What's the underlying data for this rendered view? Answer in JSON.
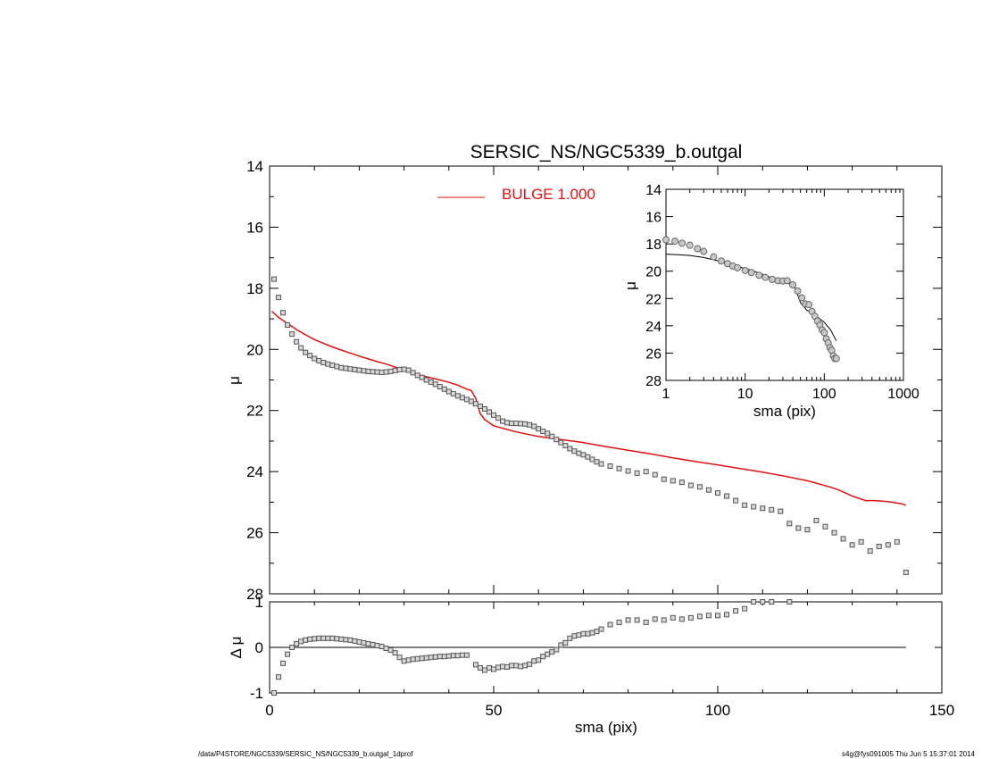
{
  "title": "SERSIC_NS/NGC5339_b.outgal",
  "footer": {
    "left": "/data/P4STORE/NGC5339/SERSIC_NS/NGC5339_b.outgal_1dprof",
    "right": "s4g@fys091005  Thu Jun  5 15:37:01 2014"
  },
  "colors": {
    "model": "#e01010",
    "data": "#555555",
    "axis": "#000000"
  },
  "chart_data": [
    {
      "id": "profile",
      "type": "scatter",
      "xlabel": "",
      "ylabel": "μ",
      "xlim": [
        0,
        150
      ],
      "ylim": [
        28,
        14
      ],
      "y_inverted": true,
      "x_ticks": [
        0,
        50,
        100,
        150
      ],
      "x_ticklabels_shown": false,
      "y_ticks": [
        14,
        16,
        18,
        20,
        22,
        24,
        26,
        28
      ],
      "y_ticklabels": [
        "14",
        "16",
        "18",
        "20",
        "22",
        "24",
        "26",
        "28"
      ],
      "legend": {
        "position": "top-center",
        "entries": [
          {
            "label": "BULGE  1.000",
            "color": "#e01010"
          }
        ]
      },
      "series": [
        {
          "kind": "points",
          "marker": "square",
          "x": [
            1,
            2,
            3,
            4,
            5,
            6,
            7,
            8,
            9,
            10,
            11,
            12,
            13,
            14,
            15,
            16,
            17,
            18,
            19,
            20,
            21,
            22,
            23,
            24,
            25,
            26,
            27,
            28,
            29,
            30,
            31,
            32,
            33,
            34,
            35,
            36,
            37,
            38,
            39,
            40,
            41,
            42,
            43,
            44,
            45,
            46,
            47,
            48,
            49,
            50,
            51,
            52,
            53,
            54,
            55,
            56,
            57,
            58,
            59,
            60,
            61,
            62,
            63,
            64,
            65,
            66,
            67,
            68,
            69,
            70,
            71,
            72,
            73,
            74,
            76,
            78,
            80,
            82,
            84,
            86,
            88,
            90,
            92,
            94,
            96,
            98,
            100,
            102,
            104,
            106,
            108,
            110,
            112,
            114,
            116,
            118,
            120,
            122,
            124,
            126,
            128,
            130,
            132,
            134,
            136,
            138,
            140,
            142
          ],
          "y": [
            17.7,
            18.3,
            18.8,
            19.2,
            19.5,
            19.75,
            19.95,
            20.1,
            20.2,
            20.3,
            20.37,
            20.43,
            20.48,
            20.52,
            20.56,
            20.6,
            20.62,
            20.64,
            20.66,
            20.68,
            20.7,
            20.72,
            20.73,
            20.74,
            20.75,
            20.74,
            20.72,
            20.69,
            20.66,
            20.65,
            20.68,
            20.76,
            20.85,
            20.92,
            21.0,
            21.07,
            21.14,
            21.22,
            21.3,
            21.38,
            21.45,
            21.52,
            21.58,
            21.64,
            21.7,
            21.78,
            21.86,
            21.95,
            22.05,
            22.15,
            22.25,
            22.35,
            22.4,
            22.42,
            22.42,
            22.43,
            22.44,
            22.47,
            22.52,
            22.6,
            22.68,
            22.75,
            22.85,
            22.95,
            23.05,
            23.15,
            23.25,
            23.33,
            23.4,
            23.45,
            23.52,
            23.6,
            23.68,
            23.75,
            23.82,
            23.9,
            23.98,
            24.05,
            24.0,
            24.1,
            24.25,
            24.3,
            24.35,
            24.45,
            24.5,
            24.6,
            24.7,
            24.8,
            24.95,
            25.1,
            25.15,
            25.2,
            25.25,
            25.3,
            25.7,
            25.85,
            25.9,
            25.6,
            25.8,
            26.0,
            26.2,
            26.4,
            26.3,
            26.6,
            26.45,
            26.4,
            26.3,
            27.3
          ]
        },
        {
          "kind": "line",
          "name": "BULGE  1.000",
          "color": "#e01010",
          "x": [
            0.5,
            2,
            4,
            6,
            8,
            10,
            12,
            14,
            16,
            18,
            20,
            22,
            24,
            26,
            28,
            30,
            32,
            34,
            36,
            38,
            40,
            42,
            43,
            44,
            45,
            46,
            47,
            48,
            50,
            55,
            60,
            65,
            70,
            75,
            80,
            85,
            90,
            95,
            100,
            105,
            110,
            115,
            120,
            125,
            127,
            130,
            133,
            135,
            138,
            141,
            142
          ],
          "y": [
            18.75,
            18.95,
            19.15,
            19.35,
            19.52,
            19.68,
            19.8,
            19.92,
            20.02,
            20.12,
            20.22,
            20.31,
            20.4,
            20.48,
            20.58,
            20.68,
            20.78,
            20.86,
            20.93,
            21.0,
            21.08,
            21.17,
            21.24,
            21.3,
            21.35,
            21.6,
            22.1,
            22.3,
            22.5,
            22.7,
            22.85,
            22.95,
            23.05,
            23.18,
            23.3,
            23.42,
            23.55,
            23.67,
            23.78,
            23.9,
            24.02,
            24.15,
            24.3,
            24.5,
            24.6,
            24.8,
            24.95,
            24.95,
            24.98,
            25.05,
            25.1
          ]
        }
      ]
    },
    {
      "id": "inset",
      "type": "line",
      "xlabel": "sma (pix)",
      "ylabel": "μ",
      "x_scale": "log",
      "xlim": [
        1,
        1000
      ],
      "ylim": [
        28,
        14
      ],
      "y_inverted": true,
      "x_ticks": [
        1,
        10,
        100,
        1000
      ],
      "x_ticklabels": [
        "1",
        "10",
        "100",
        "1000"
      ],
      "y_ticks": [
        14,
        16,
        18,
        20,
        22,
        24,
        26,
        28
      ],
      "y_ticklabels": [
        "14",
        "16",
        "18",
        "20",
        "22",
        "24",
        "26",
        "28"
      ],
      "series": [
        {
          "kind": "points",
          "marker": "circle",
          "x": [
            1,
            1.3,
            1.6,
            2,
            2.5,
            3,
            4,
            5,
            6,
            7,
            8,
            10,
            12,
            15,
            18,
            22,
            26,
            30,
            34,
            40,
            46,
            52,
            58,
            64,
            70,
            76,
            82,
            88,
            94,
            100,
            106,
            112,
            118,
            124,
            130,
            136,
            142
          ],
          "y": [
            17.7,
            17.8,
            17.95,
            18.1,
            18.35,
            18.55,
            18.95,
            19.25,
            19.45,
            19.62,
            19.75,
            19.95,
            20.1,
            20.3,
            20.45,
            20.6,
            20.7,
            20.72,
            20.7,
            21.0,
            21.45,
            21.95,
            22.4,
            22.45,
            22.95,
            23.3,
            23.65,
            23.95,
            24.3,
            24.5,
            24.95,
            25.25,
            25.6,
            25.8,
            26.2,
            26.4,
            26.4
          ]
        },
        {
          "kind": "line",
          "color": "#000000",
          "x": [
            1,
            1.5,
            2,
            3,
            5,
            8,
            12,
            20,
            30,
            40,
            44,
            46,
            50,
            60,
            70,
            80,
            100,
            120,
            142
          ],
          "y": [
            18.75,
            18.8,
            18.85,
            19.0,
            19.3,
            19.65,
            19.95,
            20.4,
            20.7,
            21.05,
            21.3,
            21.7,
            22.3,
            22.85,
            23.05,
            23.3,
            23.75,
            24.3,
            25.1
          ]
        }
      ]
    },
    {
      "id": "residual",
      "type": "scatter",
      "xlabel": "sma (pix)",
      "ylabel": "Δ μ",
      "xlim": [
        0,
        150
      ],
      "ylim": [
        -1,
        1
      ],
      "x_ticks": [
        0,
        50,
        100,
        150
      ],
      "x_ticklabels": [
        "0",
        "50",
        "100",
        "150"
      ],
      "y_ticks": [
        -1,
        0,
        1
      ],
      "y_ticklabels": [
        "-1",
        "0",
        "1"
      ],
      "reference_line": 0,
      "series": [
        {
          "kind": "points",
          "marker": "square",
          "x": [
            1,
            2,
            3,
            4,
            5,
            6,
            7,
            8,
            9,
            10,
            11,
            12,
            13,
            14,
            15,
            16,
            17,
            18,
            19,
            20,
            21,
            22,
            23,
            24,
            25,
            26,
            27,
            28,
            29,
            30,
            31,
            32,
            33,
            34,
            35,
            36,
            37,
            38,
            39,
            40,
            41,
            42,
            43,
            44,
            46,
            47,
            48,
            49,
            50,
            51,
            52,
            53,
            54,
            55,
            56,
            57,
            58,
            59,
            60,
            61,
            62,
            63,
            64,
            65,
            66,
            67,
            68,
            69,
            70,
            71,
            72,
            73,
            74,
            76,
            78,
            80,
            82,
            84,
            86,
            88,
            90,
            92,
            94,
            96,
            98,
            100,
            102,
            104,
            106,
            108,
            110,
            112,
            116
          ],
          "y": [
            -1.0,
            -0.65,
            -0.35,
            -0.15,
            0.0,
            0.08,
            0.13,
            0.16,
            0.18,
            0.19,
            0.2,
            0.2,
            0.2,
            0.2,
            0.19,
            0.18,
            0.17,
            0.16,
            0.14,
            0.12,
            0.1,
            0.08,
            0.06,
            0.04,
            0.02,
            -0.02,
            -0.06,
            -0.12,
            -0.22,
            -0.3,
            -0.28,
            -0.26,
            -0.25,
            -0.24,
            -0.23,
            -0.22,
            -0.21,
            -0.2,
            -0.2,
            -0.19,
            -0.18,
            -0.18,
            -0.17,
            -0.17,
            -0.38,
            -0.45,
            -0.5,
            -0.45,
            -0.48,
            -0.44,
            -0.42,
            -0.43,
            -0.4,
            -0.4,
            -0.42,
            -0.4,
            -0.37,
            -0.3,
            -0.28,
            -0.2,
            -0.15,
            -0.1,
            -0.05,
            0.05,
            0.1,
            0.2,
            0.25,
            0.27,
            0.3,
            0.3,
            0.32,
            0.35,
            0.4,
            0.5,
            0.55,
            0.6,
            0.6,
            0.55,
            0.62,
            0.6,
            0.65,
            0.62,
            0.65,
            0.68,
            0.7,
            0.7,
            0.72,
            0.8,
            0.85,
            1.0,
            1.0,
            1.0,
            1.0
          ]
        }
      ]
    }
  ]
}
